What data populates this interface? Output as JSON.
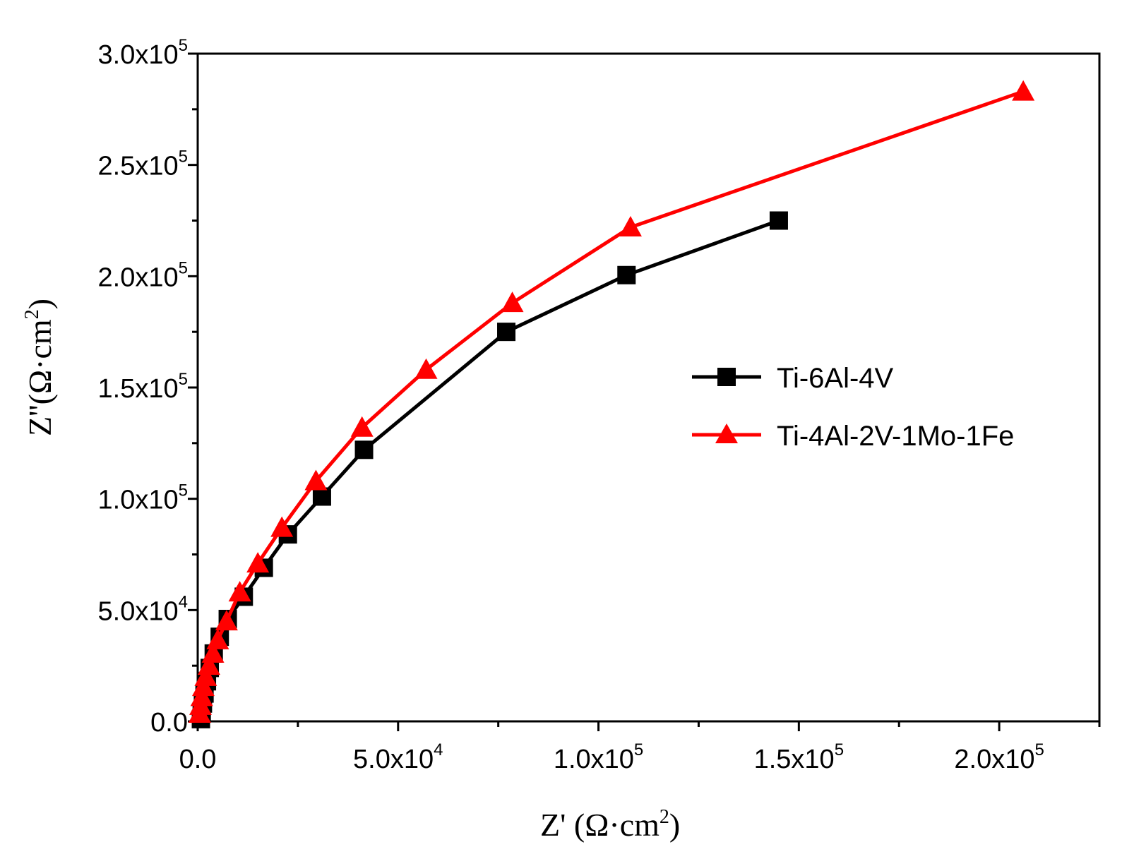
{
  "chart_data": {
    "type": "line",
    "title": "",
    "xlabel": "Z' (Ω·cm²)",
    "ylabel": "Z''(Ω·cm²)",
    "xlabel_parts": {
      "main": "Z' (Ω·cm",
      "sup": "2",
      "close": ")"
    },
    "ylabel_parts": {
      "main": "Z''(Ω·cm",
      "sup": "2",
      "close": ")"
    },
    "xlim": [
      0,
      225000
    ],
    "ylim": [
      0,
      300000
    ],
    "x_ticks": [
      {
        "value": 0,
        "mantissa": "0.0",
        "exp": ""
      },
      {
        "value": 50000,
        "mantissa": "5.0x10",
        "exp": "4"
      },
      {
        "value": 100000,
        "mantissa": "1.0x10",
        "exp": "5"
      },
      {
        "value": 150000,
        "mantissa": "1.5x10",
        "exp": "5"
      },
      {
        "value": 200000,
        "mantissa": "2.0x10",
        "exp": "5"
      }
    ],
    "y_ticks": [
      {
        "value": 0,
        "mantissa": "0.0",
        "exp": ""
      },
      {
        "value": 50000,
        "mantissa": "5.0x10",
        "exp": "4"
      },
      {
        "value": 100000,
        "mantissa": "1.0x10",
        "exp": "5"
      },
      {
        "value": 150000,
        "mantissa": "1.5x10",
        "exp": "5"
      },
      {
        "value": 200000,
        "mantissa": "2.0x10",
        "exp": "5"
      },
      {
        "value": 250000,
        "mantissa": "2.5x10",
        "exp": "5"
      },
      {
        "value": 300000,
        "mantissa": "3.0x10",
        "exp": "5"
      }
    ],
    "x_minor_step": 25000,
    "y_minor_step": 25000,
    "grid": false,
    "legend_position": "center-right",
    "series": [
      {
        "name": "Ti-6Al-4V",
        "color": "#000000",
        "marker": "square",
        "x": [
          800,
          1000,
          1300,
          1700,
          2300,
          3000,
          4000,
          5500,
          7500,
          11500,
          16500,
          22500,
          31000,
          41500,
          77000,
          107000,
          145000
        ],
        "y": [
          1000,
          4000,
          8000,
          12500,
          18000,
          24000,
          30500,
          38000,
          46000,
          56000,
          69000,
          84000,
          101000,
          122000,
          175000,
          200500,
          225000
        ]
      },
      {
        "name": "Ti-4Al-2V-1Mo-1Fe",
        "color": "#ff0000",
        "marker": "triangle",
        "x": [
          500,
          700,
          1000,
          1400,
          2000,
          2800,
          3800,
          5000,
          7200,
          10500,
          15000,
          21000,
          29500,
          41000,
          57000,
          78500,
          108000,
          206000
        ],
        "y": [
          3500,
          7000,
          11000,
          15500,
          20000,
          25000,
          30500,
          36500,
          45000,
          58000,
          71000,
          87000,
          108000,
          132000,
          158000,
          188000,
          222000,
          283000
        ]
      }
    ]
  }
}
